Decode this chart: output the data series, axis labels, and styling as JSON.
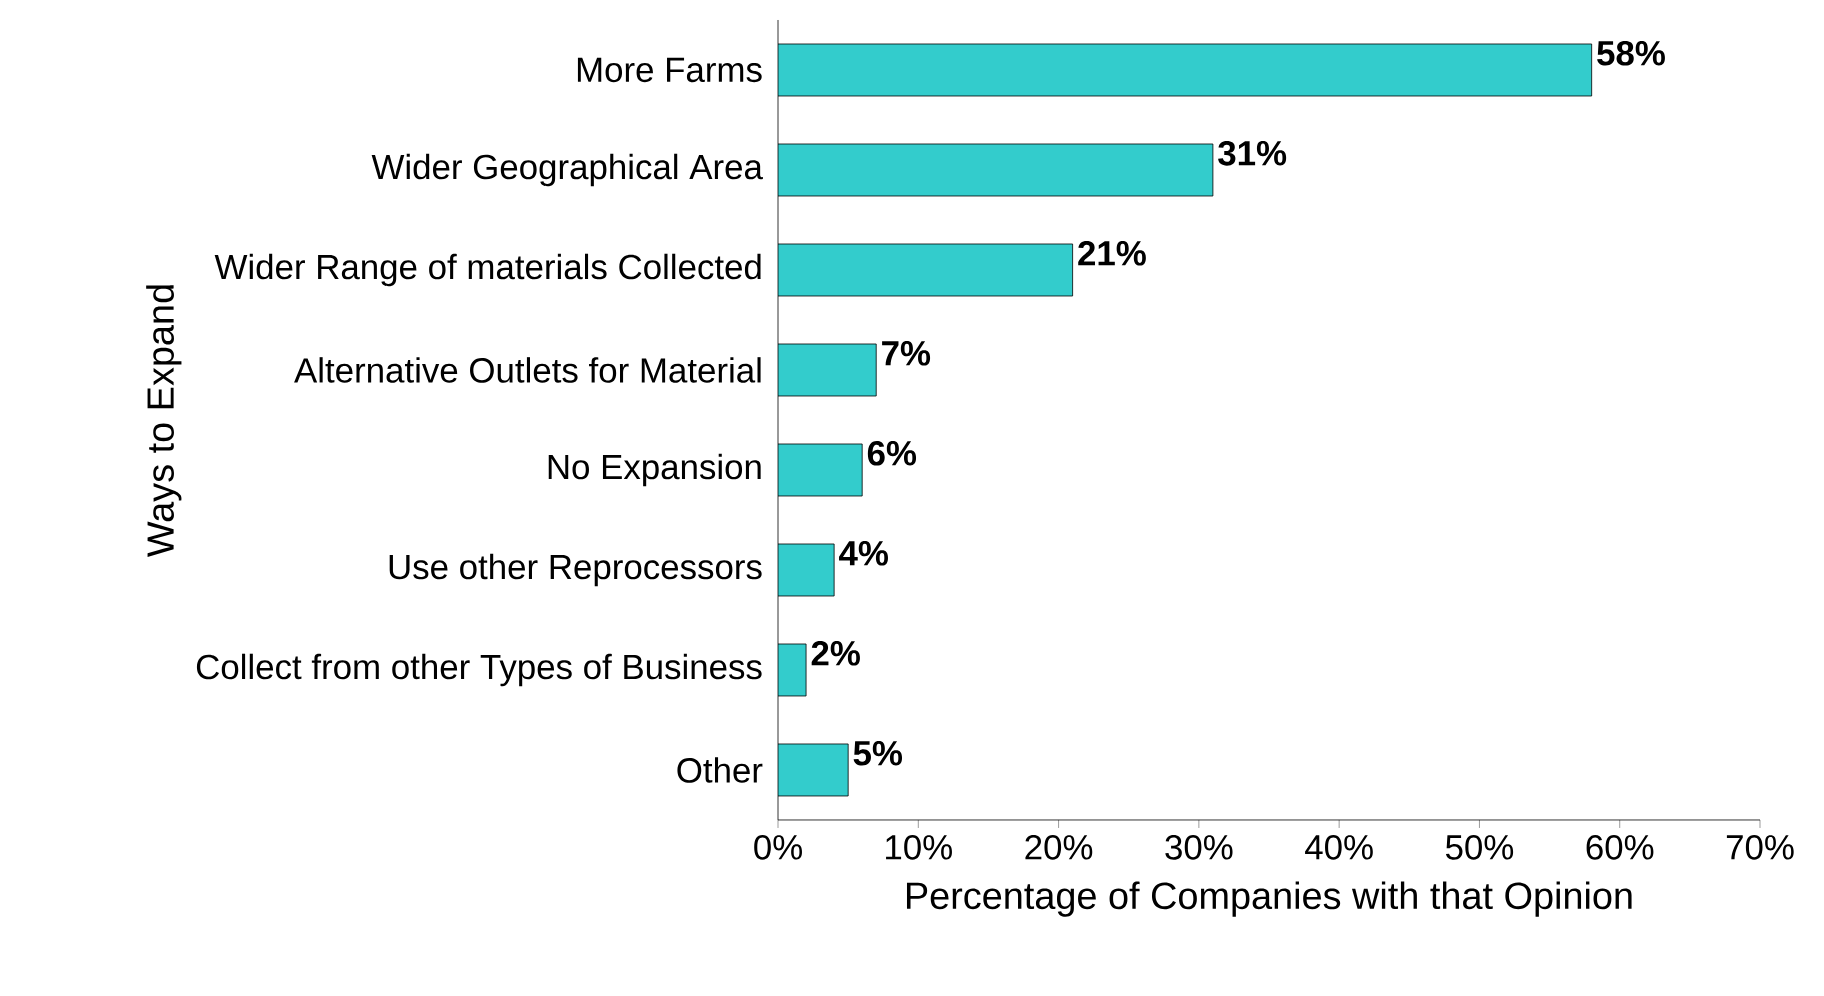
{
  "chart_data": {
    "type": "bar",
    "orientation": "horizontal",
    "xlabel": "Percentage of Companies with that Opinion",
    "ylabel": "Ways to Expand",
    "categories": [
      "More Farms",
      "Wider Geographical Area",
      "Wider Range of materials Collected",
      "Alternative Outlets for Material",
      "No Expansion",
      "Use other Reprocessors",
      "Collect from other Types of Business",
      "Other"
    ],
    "values": [
      58,
      31,
      21,
      7,
      6,
      4,
      2,
      5
    ],
    "value_labels": [
      "58%",
      "31%",
      "21%",
      "7%",
      "6%",
      "4%",
      "2%",
      "5%"
    ],
    "color": "#33cccc",
    "xlim": [
      0,
      70
    ],
    "xticks": [
      {
        "value": 0,
        "label": "0%"
      },
      {
        "value": 10,
        "label": "10%"
      },
      {
        "value": 20,
        "label": "20%"
      },
      {
        "value": 30,
        "label": "30%"
      },
      {
        "value": 40,
        "label": "40%"
      },
      {
        "value": 50,
        "label": "50%"
      },
      {
        "value": 60,
        "label": "60%"
      },
      {
        "value": 70,
        "label": "70%"
      }
    ],
    "grid": false
  }
}
